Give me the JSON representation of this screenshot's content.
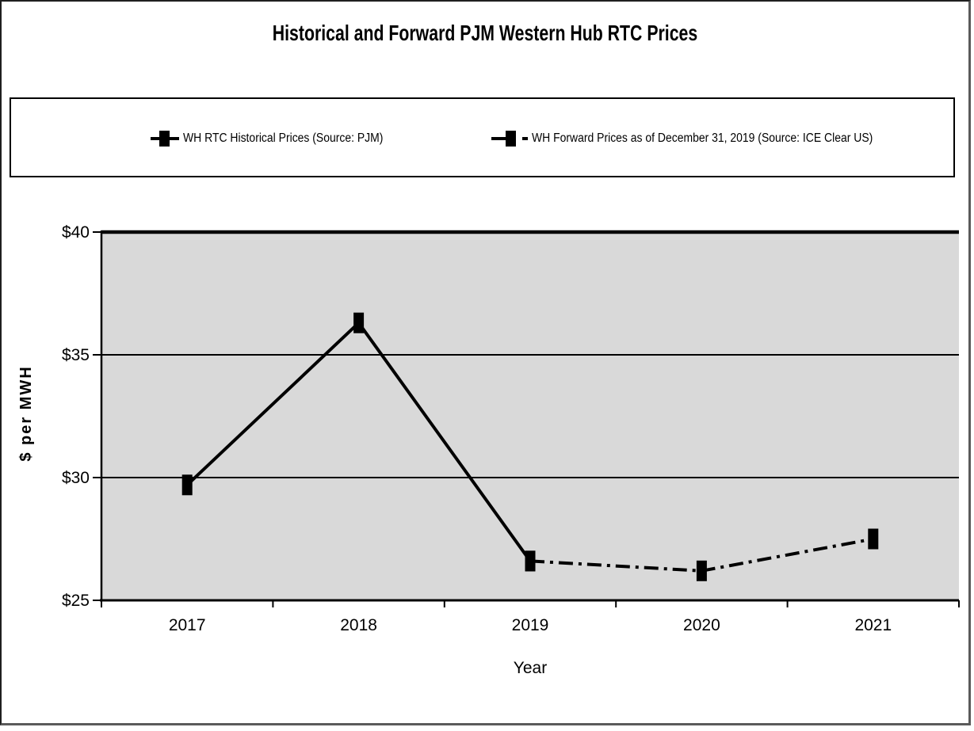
{
  "chart_data": {
    "type": "line",
    "title": "Historical and Forward PJM Western Hub RTC Prices",
    "xlabel": "Year",
    "ylabel": "$ per MWH",
    "categories": [
      "2017",
      "2018",
      "2019",
      "2020",
      "2021"
    ],
    "series": [
      {
        "name": "WH RTC Historical Prices (Source: PJM)",
        "line_style": "solid",
        "marker": "square",
        "color": "#000000",
        "values": [
          29.7,
          36.3,
          26.6,
          null,
          null
        ]
      },
      {
        "name": "WH Forward Prices as of December 31, 2019 (Source: ICE Clear US)",
        "line_style": "dash-dot",
        "marker": "square",
        "color": "#000000",
        "values": [
          null,
          null,
          26.6,
          26.2,
          27.5
        ]
      }
    ],
    "ylim": [
      25,
      40
    ],
    "yticks": [
      25,
      30,
      35,
      40
    ],
    "ytick_labels": [
      "$25",
      "$30",
      "$35",
      "$40"
    ],
    "grid": true,
    "legend_position": "top",
    "plot_background": "#d9d9d9",
    "axis_color": "#000000"
  }
}
